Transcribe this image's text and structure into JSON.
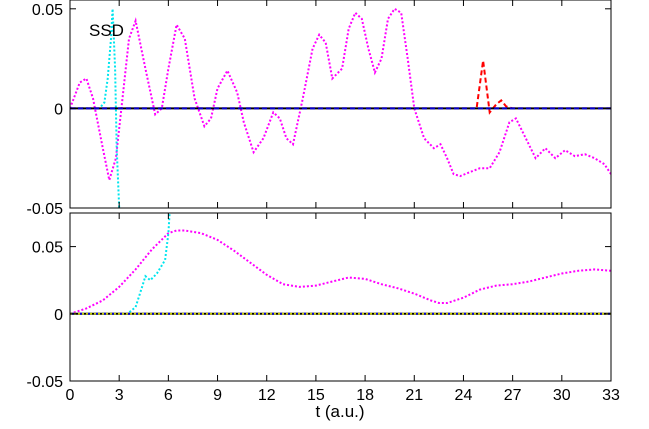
{
  "chart_data": [
    {
      "type": "line",
      "annotation": "SSD",
      "xlabel": "",
      "ylabel": "",
      "xlim": [
        0,
        33
      ],
      "ylim": [
        -0.05,
        0.075
      ],
      "x_ticks": [
        0,
        3,
        6,
        9,
        12,
        15,
        18,
        21,
        24,
        27,
        30,
        33
      ],
      "y_ticks": [
        {
          "value": 0.05,
          "label": "0.05"
        },
        {
          "value": 0,
          "label": "0"
        },
        {
          "value": -0.05,
          "label": "-0.05"
        }
      ],
      "grid": false,
      "series": [
        {
          "color": "#ff00ff",
          "style": "dotted",
          "x": [
            0,
            0.6,
            1.0,
            1.4,
            2.0,
            2.4,
            2.8,
            3.2,
            3.6,
            4.0,
            4.6,
            5.2,
            5.6,
            6.0,
            6.5,
            7.0,
            7.6,
            8.2,
            8.6,
            9.0,
            9.6,
            10.2,
            10.6,
            11.2,
            11.8,
            12.4,
            12.8,
            13.2,
            13.6,
            14.2,
            14.8,
            15.2,
            15.6,
            16.0,
            16.6,
            17.0,
            17.4,
            17.8,
            18.2,
            18.6,
            19.0,
            19.4,
            19.8,
            20.2,
            20.6,
            21.0,
            21.6,
            22.2,
            22.6,
            23.0,
            23.4,
            23.8,
            24.4,
            25.0,
            25.6,
            26.2,
            26.8,
            27.2,
            27.8,
            28.4,
            29.0,
            29.6,
            30.2,
            30.8,
            31.4,
            32.0,
            32.6,
            33.0
          ],
          "y": [
            0,
            0.013,
            0.015,
            0.005,
            -0.02,
            -0.036,
            -0.025,
            0.005,
            0.035,
            0.044,
            0.02,
            -0.003,
            0.0,
            0.02,
            0.042,
            0.035,
            0.005,
            -0.009,
            -0.005,
            0.01,
            0.019,
            0.008,
            -0.007,
            -0.022,
            -0.015,
            -0.002,
            -0.005,
            -0.015,
            -0.018,
            0.005,
            0.03,
            0.037,
            0.033,
            0.015,
            0.02,
            0.04,
            0.048,
            0.045,
            0.03,
            0.018,
            0.025,
            0.045,
            0.05,
            0.048,
            0.025,
            0.0,
            -0.015,
            -0.02,
            -0.018,
            -0.025,
            -0.033,
            -0.034,
            -0.032,
            -0.03,
            -0.03,
            -0.022,
            -0.007,
            -0.005,
            -0.015,
            -0.025,
            -0.02,
            -0.025,
            -0.021,
            -0.024,
            -0.023,
            -0.025,
            -0.028,
            -0.033
          ]
        },
        {
          "color": "#00e5ee",
          "style": "dotted",
          "x": [
            0,
            1.8,
            2.1,
            2.3,
            2.5,
            2.6,
            2.75,
            2.85,
            3.0
          ],
          "y": [
            0,
            0,
            0.003,
            0.015,
            0.035,
            0.05,
            0.02,
            -0.02,
            -0.05
          ]
        },
        {
          "color": "#ff0000",
          "style": "dashed",
          "x": [
            0,
            24.8,
            25.2,
            25.6,
            26.0,
            26.3,
            26.6,
            27.0,
            33
          ],
          "y": [
            0,
            0,
            0.024,
            -0.002,
            0.002,
            0.004,
            0.001,
            0,
            0
          ]
        },
        {
          "color": "#000000",
          "style": "solid",
          "x": [
            0,
            33
          ],
          "y": [
            0,
            0
          ]
        },
        {
          "color": "#0000cc",
          "style": "dashed",
          "x": [
            0,
            33
          ],
          "y": [
            0,
            0
          ]
        }
      ]
    },
    {
      "type": "line",
      "xlabel": "t (a.u.)",
      "ylabel": "",
      "xlim": [
        0,
        33
      ],
      "ylim": [
        -0.05,
        0.075
      ],
      "x_ticks": [
        0,
        3,
        6,
        9,
        12,
        15,
        18,
        21,
        24,
        27,
        30,
        33
      ],
      "x_tick_labels": [
        "0",
        "3",
        "6",
        "9",
        "12",
        "15",
        "18",
        "21",
        "24",
        "27",
        "30",
        "33"
      ],
      "y_ticks": [
        {
          "value": 0.05,
          "label": "0.05"
        },
        {
          "value": 0,
          "label": "0"
        },
        {
          "value": -0.05,
          "label": "-0.05"
        }
      ],
      "grid": false,
      "series": [
        {
          "color": "#ff00ff",
          "style": "dotted",
          "x": [
            0,
            1.0,
            2.0,
            3.0,
            4.0,
            5.0,
            6.0,
            6.5,
            7.0,
            8.0,
            9.0,
            10.0,
            11.0,
            12.0,
            13.0,
            14.0,
            15.0,
            16.0,
            17.0,
            18.0,
            19.0,
            20.0,
            21.0,
            22.0,
            22.5,
            23.0,
            24.0,
            25.0,
            26.0,
            27.0,
            28.0,
            29.0,
            30.0,
            31.0,
            32.0,
            33.0
          ],
          "y": [
            0,
            0.004,
            0.01,
            0.02,
            0.033,
            0.048,
            0.06,
            0.062,
            0.062,
            0.06,
            0.055,
            0.047,
            0.038,
            0.029,
            0.022,
            0.02,
            0.021,
            0.024,
            0.027,
            0.026,
            0.022,
            0.019,
            0.015,
            0.01,
            0.008,
            0.008,
            0.012,
            0.018,
            0.021,
            0.022,
            0.024,
            0.027,
            0.03,
            0.032,
            0.033,
            0.032
          ]
        },
        {
          "color": "#00e5ee",
          "style": "dotted",
          "x": [
            0,
            3.5,
            4.0,
            4.4,
            4.6,
            4.9,
            5.3,
            5.8,
            6.0,
            6.1
          ],
          "y": [
            0,
            0,
            0.005,
            0.02,
            0.028,
            0.025,
            0.03,
            0.04,
            0.06,
            0.08
          ]
        },
        {
          "color": "#000000",
          "style": "solid",
          "x": [
            0,
            33
          ],
          "y": [
            0,
            0
          ]
        },
        {
          "color": "#0000cc",
          "style": "dashed",
          "x": [
            0,
            33
          ],
          "y": [
            0,
            0
          ]
        },
        {
          "color": "#cccc00",
          "style": "dotted",
          "x": [
            0,
            33
          ],
          "y": [
            0,
            0
          ]
        }
      ]
    }
  ]
}
